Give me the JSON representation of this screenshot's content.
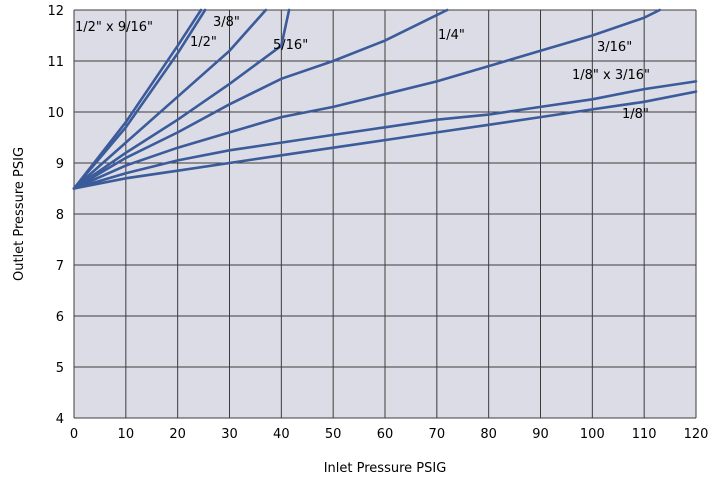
{
  "chart_data": {
    "type": "line",
    "title": "",
    "xlabel": "Inlet Pressure   PSIG",
    "ylabel": "Outlet Pressure   PSIG",
    "xlim": [
      0,
      120
    ],
    "ylim": [
      4,
      12
    ],
    "xticks": [
      0,
      10,
      20,
      30,
      40,
      50,
      60,
      70,
      80,
      90,
      100,
      110,
      120
    ],
    "yticks": [
      4,
      5,
      6,
      7,
      8,
      9,
      10,
      11,
      12
    ],
    "grid": true,
    "legend": "none",
    "colors": {
      "plot_background": "#dcdce6",
      "grid": "#3c3c3c",
      "series": "#3b5b9a"
    },
    "series": [
      {
        "name": "1/2\" x 9/16\"",
        "x": [
          0,
          10,
          20,
          24.5
        ],
        "y": [
          8.5,
          9.8,
          11.3,
          12
        ]
      },
      {
        "name": "1/2\"",
        "x": [
          0,
          10,
          20,
          25.3
        ],
        "y": [
          8.5,
          9.7,
          11.15,
          12
        ]
      },
      {
        "name": "3/8\"",
        "x": [
          0,
          10,
          20,
          30,
          37
        ],
        "y": [
          8.5,
          9.4,
          10.3,
          11.2,
          12
        ]
      },
      {
        "name": "5/16\"",
        "x": [
          0,
          10,
          20,
          30,
          40,
          41.5
        ],
        "y": [
          8.5,
          9.2,
          9.85,
          10.55,
          11.3,
          12
        ]
      },
      {
        "name": "1/4\"",
        "x": [
          0,
          10,
          20,
          30,
          40,
          50,
          60,
          70,
          72
        ],
        "y": [
          8.5,
          9.1,
          9.6,
          10.15,
          10.65,
          11.0,
          11.4,
          11.9,
          12
        ]
      },
      {
        "name": "3/16\"",
        "x": [
          0,
          10,
          20,
          30,
          40,
          50,
          60,
          70,
          80,
          90,
          100,
          110,
          113
        ],
        "y": [
          8.5,
          8.95,
          9.3,
          9.6,
          9.9,
          10.1,
          10.35,
          10.6,
          10.9,
          11.2,
          11.5,
          11.85,
          12
        ]
      },
      {
        "name": "1/8\" x 3/16\"",
        "x": [
          0,
          10,
          20,
          30,
          40,
          50,
          60,
          70,
          80,
          90,
          100,
          110,
          120
        ],
        "y": [
          8.5,
          8.8,
          9.05,
          9.25,
          9.4,
          9.55,
          9.7,
          9.85,
          9.95,
          10.1,
          10.25,
          10.45,
          10.6
        ]
      },
      {
        "name": "1/8\"",
        "x": [
          0,
          10,
          20,
          30,
          40,
          50,
          60,
          70,
          80,
          90,
          100,
          110,
          120
        ],
        "y": [
          8.5,
          8.7,
          8.85,
          9.0,
          9.15,
          9.3,
          9.45,
          9.6,
          9.75,
          9.9,
          10.05,
          10.2,
          10.4
        ]
      }
    ],
    "annotations": [
      {
        "text": "1/2\" x 9/16\"",
        "series": "1/2\" x 9/16\""
      },
      {
        "text": "3/8\"",
        "series": "3/8\""
      },
      {
        "text": "1/2\"",
        "series": "1/2\""
      },
      {
        "text": "5/16\"",
        "series": "5/16\""
      },
      {
        "text": "1/4\"",
        "series": "1/4\""
      },
      {
        "text": "3/16\"",
        "series": "3/16\""
      },
      {
        "text": "1/8\" x 3/16\"",
        "series": "1/8\" x 3/16\""
      },
      {
        "text": "1/8\"",
        "series": "1/8\""
      }
    ]
  }
}
